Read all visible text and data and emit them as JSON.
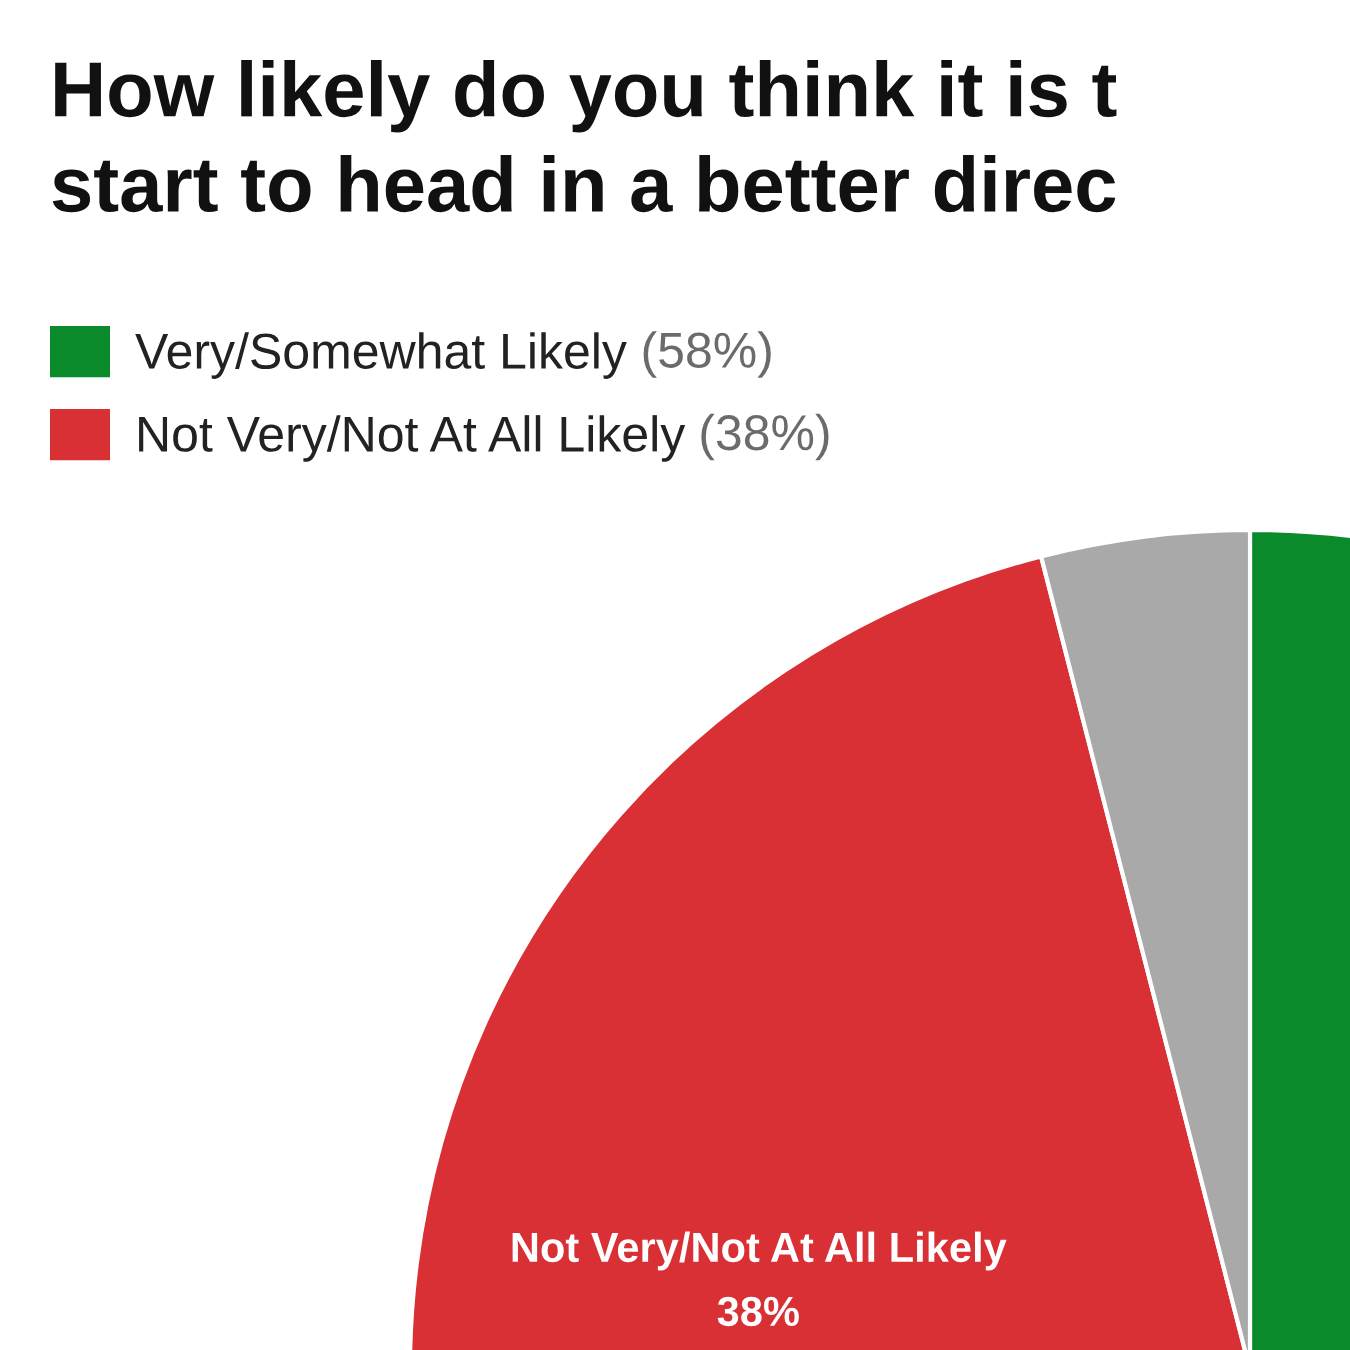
{
  "chart_data": {
    "type": "pie",
    "title": "How likely do you think it is t\nstart to head in a better direc",
    "categories": [
      "Very/Somewhat Likely",
      "Not Very/Not At All Likely",
      null
    ],
    "values": [
      58,
      38,
      4
    ],
    "colors": [
      "#0b8a2b",
      "#d93035",
      "#a9a9a9"
    ],
    "value_labels": [
      "(58%)",
      "(38%)",
      null
    ],
    "annotations": [
      {
        "text": "38%",
        "x": "Not Very/Not At All Likely"
      }
    ],
    "legend": "top left"
  }
}
